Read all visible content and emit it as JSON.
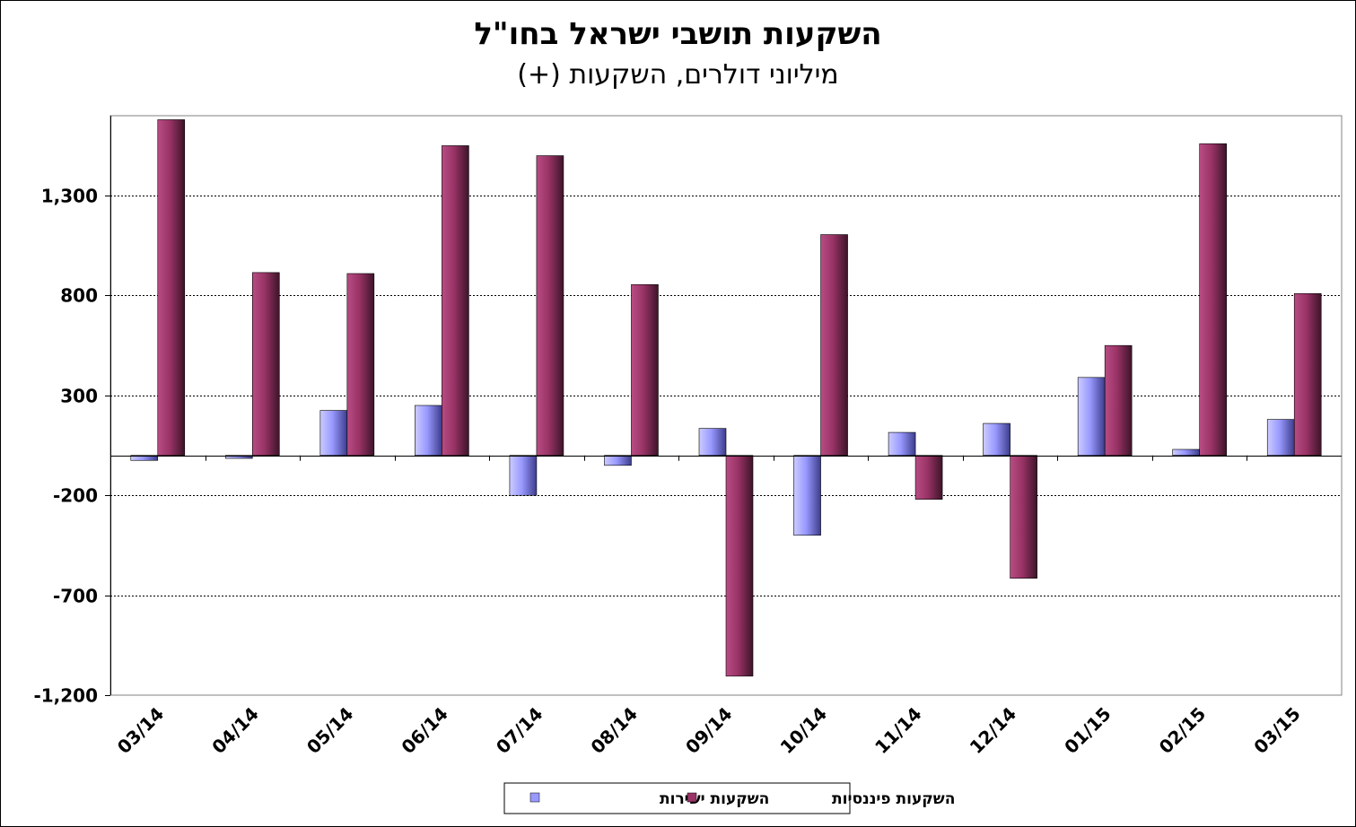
{
  "chart_data": {
    "type": "bar",
    "title": "השקעות תושבי ישראל בחו\"ל",
    "subtitle": "מיליוני דולרים, השקעות (+)",
    "categories": [
      "03/14",
      "04/14",
      "05/14",
      "06/14",
      "07/14",
      "08/14",
      "09/14",
      "10/14",
      "11/14",
      "12/14",
      "01/15",
      "02/15",
      "03/15"
    ],
    "series": [
      {
        "name": "השקעות ישירות",
        "color": "#9999ff",
        "values": [
          -25,
          -15,
          225,
          250,
          -200,
          -50,
          135,
          -400,
          115,
          160,
          390,
          30,
          180
        ]
      },
      {
        "name": "השקעות פיננסיות",
        "color": "#993366",
        "values": [
          1680,
          915,
          910,
          1550,
          1500,
          855,
          -1105,
          1105,
          -220,
          -615,
          550,
          1560,
          810
        ]
      }
    ],
    "yticks": [
      -1200,
      -700,
      -200,
      300,
      800,
      1300
    ],
    "ytick_labels": [
      "-1,200",
      "-700",
      "-200",
      "300",
      "800",
      "1,300"
    ],
    "ylim": [
      -1200,
      1700
    ],
    "grid": true,
    "legend_position": "bottom"
  }
}
